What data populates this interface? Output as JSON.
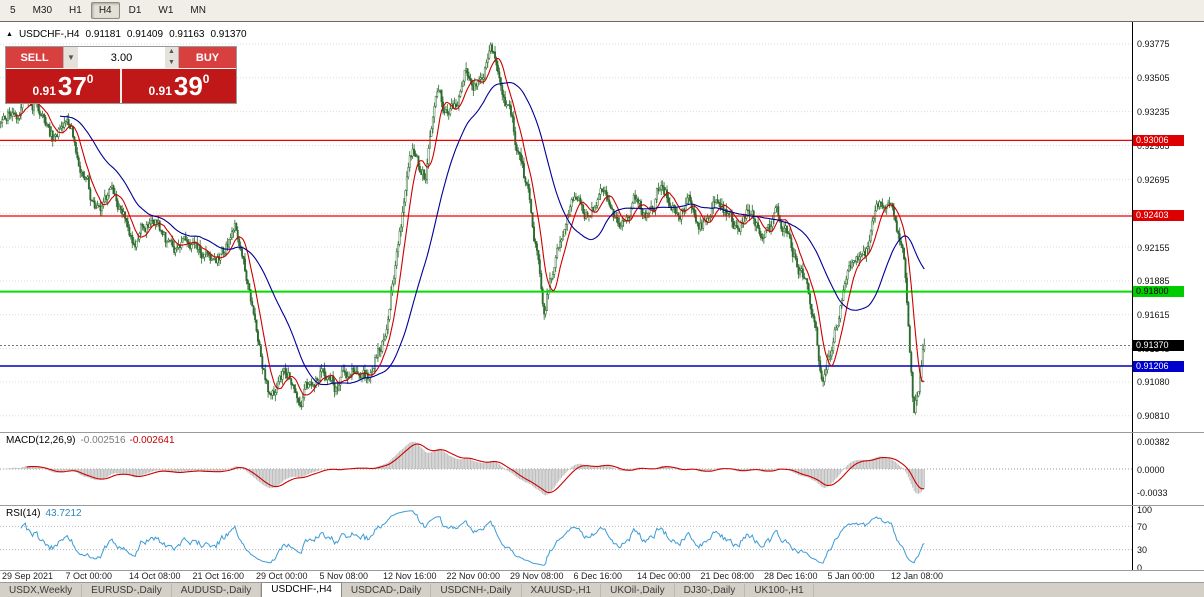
{
  "toolbar": {
    "timeframes": [
      "5",
      "M30",
      "H1",
      "H4",
      "D1",
      "W1",
      "MN"
    ],
    "active": "H4"
  },
  "symbol_header": {
    "marker": "▲",
    "title": "USDCHF-,H4",
    "open": "0.91181",
    "high": "0.91409",
    "low": "0.91163",
    "close": "0.91370"
  },
  "trade_panel": {
    "sell_label": "SELL",
    "buy_label": "BUY",
    "volume": "3.00",
    "sell_prefix": "0.91",
    "sell_big": "37",
    "sell_sup": "0",
    "buy_prefix": "0.91",
    "buy_big": "39",
    "buy_sup": "0"
  },
  "indicators": {
    "macd_title": "MACD(12,26,9)",
    "macd_value_main": "-0.002516",
    "macd_value_signal": "-0.002641",
    "rsi_title": "RSI(14)",
    "rsi_value": "43.7212"
  },
  "tabs": {
    "items": [
      "USDX,Weekly",
      "EURUSD-,Daily",
      "AUDUSD-,Daily",
      "USDCHF-,H4",
      "USDCAD-,Daily",
      "USDCNH-,Daily",
      "XAUUSD-,H1",
      "UKOil-,Daily",
      "DJ30-,Daily",
      "UK100-,H1"
    ],
    "active": "USDCHF-,H4"
  },
  "chart_data": {
    "type": "candlestick",
    "symbol": "USDCHF-",
    "timeframe": "H4",
    "ohlc": {
      "open": 0.91181,
      "high": 0.91409,
      "low": 0.91163,
      "close": 0.9137
    },
    "bars": 640,
    "current_price": 0.9137,
    "price_axis": {
      "top": 0.9395,
      "bottom": 0.9068,
      "labels": [
        "0.93775",
        "0.93505",
        "0.93235",
        "0.92965",
        "0.92695",
        "0.92425",
        "0.92155",
        "0.91885",
        "0.91615",
        "0.91345",
        "0.91080",
        "0.90810"
      ]
    },
    "hlines": [
      {
        "price": 0.93006,
        "label": "0.93006",
        "line_color": "#ee0000",
        "tag_bg": "#dd0000",
        "tag_fg": "#ffffff",
        "width": 1.2
      },
      {
        "price": 0.92403,
        "label": "0.92403",
        "line_color": "#ee0000",
        "tag_bg": "#dd0000",
        "tag_fg": "#ffffff",
        "width": 1.2
      },
      {
        "price": 0.918,
        "label": "0.91800",
        "line_color": "#00dd00",
        "tag_bg": "#00cc00",
        "tag_fg": "#000000",
        "width": 2
      },
      {
        "price": 0.91206,
        "label": "0.91206",
        "line_color": "#0000bb",
        "tag_bg": "#0000cc",
        "tag_fg": "#ffffff",
        "width": 1.5
      }
    ],
    "current_tag": {
      "label": "0.91370",
      "tag_bg": "#000000",
      "tag_fg": "#ffffff"
    },
    "time_labels": [
      "29 Sep 2021",
      "7 Oct 00:00",
      "14 Oct 08:00",
      "21 Oct 16:00",
      "29 Oct 00:00",
      "5 Nov 08:00",
      "12 Nov 16:00",
      "22 Nov 00:00",
      "29 Nov 08:00",
      "6 Dec 16:00",
      "14 Dec 00:00",
      "21 Dec 08:00",
      "28 Dec 16:00",
      "5 Jan 00:00",
      "12 Jan 08:00"
    ],
    "macd": {
      "scale_to": 0.00382,
      "range": 0.0046,
      "axis": [
        {
          "v": 0.00382,
          "label": "0.00382"
        },
        {
          "v": 0,
          "label": "0.0000"
        },
        {
          "v": -0.0033,
          "label": "-0.0033"
        }
      ]
    },
    "rsi": {
      "levels": [
        70,
        30
      ],
      "axis": [
        {
          "v": 100,
          "label": "100"
        },
        {
          "v": 70,
          "label": "70"
        },
        {
          "v": 30,
          "label": "30"
        },
        {
          "v": 0,
          "label": "0"
        }
      ]
    },
    "price_path": [
      [
        0,
        0.932
      ],
      [
        0.038,
        0.9331
      ],
      [
        0.059,
        0.93
      ],
      [
        0.076,
        0.9313
      ],
      [
        0.103,
        0.9243
      ],
      [
        0.124,
        0.9255
      ],
      [
        0.146,
        0.9225
      ],
      [
        0.162,
        0.924
      ],
      [
        0.189,
        0.921
      ],
      [
        0.211,
        0.9225
      ],
      [
        0.232,
        0.92
      ],
      [
        0.254,
        0.9228
      ],
      [
        0.276,
        0.915
      ],
      [
        0.292,
        0.909
      ],
      [
        0.308,
        0.9118
      ],
      [
        0.324,
        0.9096
      ],
      [
        0.346,
        0.9122
      ],
      [
        0.362,
        0.9105
      ],
      [
        0.384,
        0.912
      ],
      [
        0.4,
        0.9108
      ],
      [
        0.416,
        0.915
      ],
      [
        0.432,
        0.9235
      ],
      [
        0.445,
        0.929
      ],
      [
        0.459,
        0.9272
      ],
      [
        0.472,
        0.933
      ],
      [
        0.486,
        0.9312
      ],
      [
        0.503,
        0.9355
      ],
      [
        0.517,
        0.9342
      ],
      [
        0.53,
        0.9375
      ],
      [
        0.546,
        0.933
      ],
      [
        0.562,
        0.9285
      ],
      [
        0.575,
        0.9245
      ],
      [
        0.589,
        0.9172
      ],
      [
        0.605,
        0.9225
      ],
      [
        0.622,
        0.925
      ],
      [
        0.638,
        0.924
      ],
      [
        0.654,
        0.9262
      ],
      [
        0.67,
        0.9236
      ],
      [
        0.686,
        0.9255
      ],
      [
        0.703,
        0.9242
      ],
      [
        0.716,
        0.9268
      ],
      [
        0.73,
        0.9242
      ],
      [
        0.746,
        0.9255
      ],
      [
        0.762,
        0.9236
      ],
      [
        0.778,
        0.925
      ],
      [
        0.795,
        0.9231
      ],
      [
        0.811,
        0.9245
      ],
      [
        0.827,
        0.9226
      ],
      [
        0.843,
        0.9236
      ],
      [
        0.859,
        0.9211
      ],
      [
        0.872,
        0.9186
      ],
      [
        0.882,
        0.915
      ],
      [
        0.89,
        0.9105
      ],
      [
        0.901,
        0.914
      ],
      [
        0.912,
        0.918
      ],
      [
        0.925,
        0.92
      ],
      [
        0.938,
        0.9215
      ],
      [
        0.951,
        0.9245
      ],
      [
        0.965,
        0.9262
      ],
      [
        0.978,
        0.921
      ],
      [
        0.989,
        0.9085
      ],
      [
        1,
        0.9137
      ]
    ],
    "colors": {
      "candle": "#2d6b2d",
      "ma_fast": "#cc0000",
      "ma_slow": "#000096",
      "macd_hist": "#bdbdbd",
      "macd_signal": "#d00000",
      "rsi": "#3d9bd5",
      "grid": "#dcdcdc"
    }
  }
}
